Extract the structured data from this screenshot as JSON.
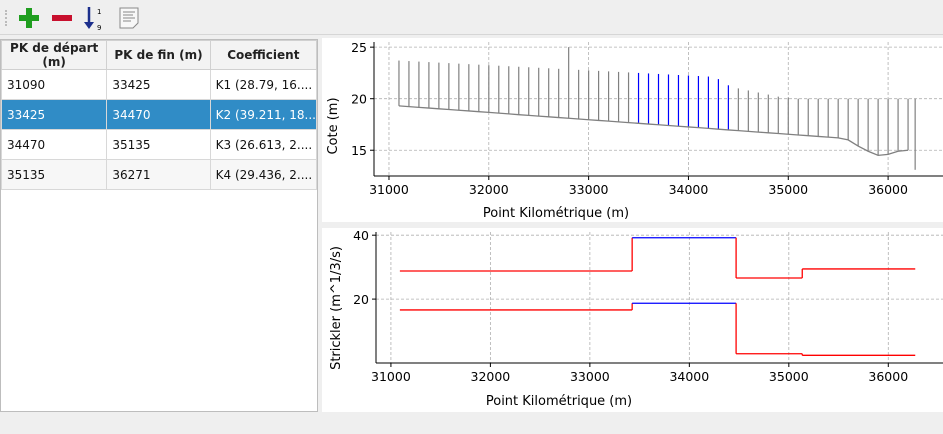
{
  "toolbar": {
    "items": [
      {
        "name": "add-icon"
      },
      {
        "name": "remove-icon"
      },
      {
        "name": "sort-icon",
        "label_top": "1",
        "label_bottom": "9"
      },
      {
        "name": "document-icon"
      }
    ]
  },
  "table": {
    "headers": [
      "PK de départ (m)",
      "PK de fin (m)",
      "Coefficient"
    ],
    "rows": [
      [
        "31090",
        "33425",
        "K1 (28.79, 16...."
      ],
      [
        "33425",
        "34470",
        "K2 (39.211, 18..."
      ],
      [
        "34470",
        "35135",
        "K3 (26.613, 2...."
      ],
      [
        "35135",
        "36271",
        "K4 (29.436, 2...."
      ]
    ],
    "selected_row": 1,
    "selection_color": "#308cc6"
  },
  "chart_data": [
    {
      "type": "line",
      "xlabel": "Point Kilométrique (m)",
      "ylabel": "Cote (m)",
      "xlim": [
        30850,
        36550
      ],
      "ylim": [
        12.5,
        25.5
      ],
      "xticks": [
        "31000",
        "32000",
        "33000",
        "34000",
        "35000",
        "36000"
      ],
      "yticks": [
        "15",
        "20",
        "25"
      ],
      "grid": true,
      "profiles": {
        "pk": [
          31100,
          31200,
          31300,
          31400,
          31500,
          31600,
          31700,
          31800,
          31900,
          32000,
          32100,
          32200,
          32300,
          32400,
          32500,
          32600,
          32700,
          32800,
          32900,
          33000,
          33100,
          33200,
          33300,
          33400,
          33500,
          33600,
          33700,
          33800,
          33900,
          34000,
          34100,
          34200,
          34300,
          34400,
          34500,
          34600,
          34700,
          34800,
          34900,
          35000,
          35100,
          35200,
          35300,
          35400,
          35500,
          35600,
          35700,
          35800,
          35900,
          36000,
          36100,
          36200,
          36271
        ],
        "bed": [
          19.3,
          19.23,
          19.16,
          19.09,
          19.02,
          18.95,
          18.88,
          18.81,
          18.74,
          18.67,
          18.6,
          18.53,
          18.45,
          18.38,
          18.31,
          18.24,
          18.17,
          18.1,
          18.03,
          17.96,
          17.89,
          17.82,
          17.75,
          17.68,
          17.61,
          17.54,
          17.47,
          17.4,
          17.33,
          17.26,
          17.19,
          17.12,
          17.04,
          16.97,
          16.9,
          16.83,
          16.76,
          16.69,
          16.62,
          16.55,
          16.48,
          16.41,
          16.34,
          16.27,
          16.2,
          16.0,
          15.4,
          14.9,
          14.5,
          14.6,
          14.9,
          15.0,
          13.1
        ],
        "top": [
          23.7,
          23.65,
          23.6,
          23.55,
          23.5,
          23.45,
          23.4,
          23.35,
          23.3,
          23.25,
          23.2,
          23.15,
          23.1,
          23.05,
          23.0,
          22.95,
          22.9,
          25.0,
          22.8,
          22.75,
          22.7,
          22.65,
          22.6,
          22.55,
          22.5,
          22.45,
          22.4,
          22.35,
          22.3,
          22.25,
          22.2,
          22.15,
          21.9,
          21.3,
          21.0,
          20.8,
          20.6,
          20.4,
          20.2,
          20.1,
          20.0,
          20.0,
          20.0,
          20.0,
          20.0,
          20.0,
          20.0,
          20.0,
          20.0,
          20.0,
          20.0,
          20.0,
          20.0
        ]
      },
      "highlight_range": [
        33425,
        34470
      ],
      "colors": {
        "profile": "#808080",
        "highlight": "#0000ff"
      }
    },
    {
      "type": "line",
      "xlabel": "Point Kilométrique (m)",
      "ylabel": "Strickler (m^1/3/s)",
      "xlim": [
        30850,
        36550
      ],
      "ylim": [
        0,
        41
      ],
      "xticks": [
        "31000",
        "32000",
        "33000",
        "34000",
        "35000",
        "36000"
      ],
      "yticks": [
        "20",
        "40"
      ],
      "grid": true,
      "segments": [
        {
          "name": "K1",
          "start": 31090,
          "end": 33425,
          "minor": 28.79,
          "major": 16.6
        },
        {
          "name": "K2",
          "start": 33425,
          "end": 34470,
          "minor": 39.211,
          "major": 18.7
        },
        {
          "name": "K3",
          "start": 34470,
          "end": 35135,
          "minor": 26.613,
          "major": 2.9
        },
        {
          "name": "K4",
          "start": 35135,
          "end": 36271,
          "minor": 29.436,
          "major": 2.4
        }
      ],
      "selected_segment": 1,
      "colors": {
        "line": "#ff0000",
        "selected": "#0000ff"
      }
    }
  ]
}
